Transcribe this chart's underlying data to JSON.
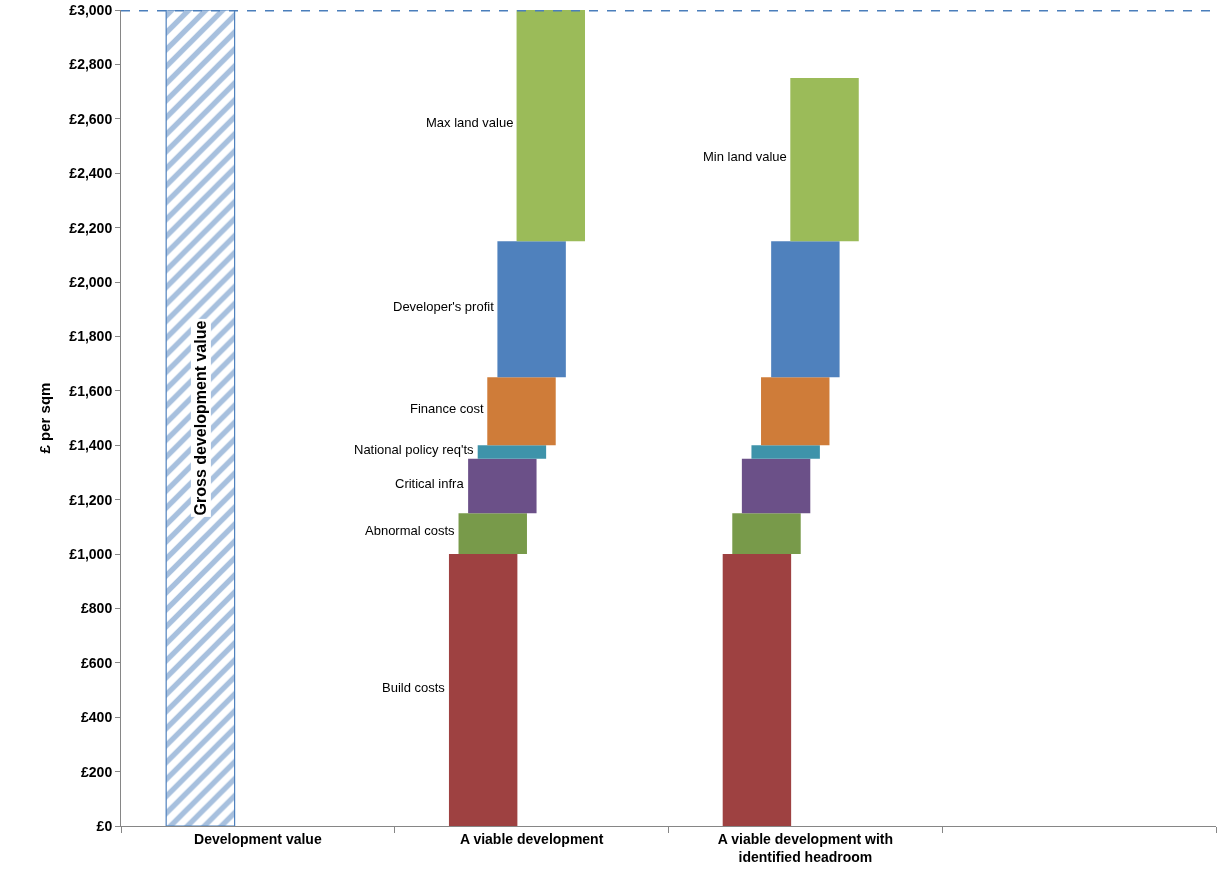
{
  "chart_data": {
    "type": "bar",
    "ylabel": "£ per sqm",
    "categories": [
      "Development value",
      "A viable development",
      "A viable development with\nidentified headroom",
      null
    ],
    "series": [
      {
        "name": "Gross development value",
        "color": "#4f81bd",
        "values": [
          3000,
          null,
          null,
          null
        ],
        "base": [
          0,
          null,
          null,
          null
        ]
      },
      {
        "name": "Build costs",
        "color": "#9e4141",
        "values": [
          null,
          1000,
          1000,
          null
        ],
        "base": [
          null,
          0,
          0,
          null
        ]
      },
      {
        "name": "Abnormal costs",
        "color": "#789a4a",
        "values": [
          null,
          150,
          150,
          null
        ],
        "base": [
          null,
          1000,
          1000,
          null
        ]
      },
      {
        "name": "Critical infra",
        "color": "#6b5088",
        "values": [
          null,
          200,
          200,
          null
        ],
        "base": [
          null,
          1150,
          1150,
          null
        ]
      },
      {
        "name": "National policy req'ts",
        "color": "#3e93aa",
        "values": [
          null,
          50,
          50,
          null
        ],
        "base": [
          null,
          1350,
          1350,
          null
        ]
      },
      {
        "name": "Finance cost",
        "color": "#cf7c39",
        "values": [
          null,
          250,
          250,
          null
        ],
        "base": [
          null,
          1400,
          1400,
          null
        ]
      },
      {
        "name": "Developer's profit",
        "color": "#4f81bd",
        "values": [
          null,
          500,
          500,
          null
        ],
        "base": [
          null,
          1650,
          1650,
          null
        ]
      },
      {
        "name": "Max land value",
        "color": "#9bbb59",
        "values": [
          null,
          850,
          null,
          null
        ],
        "base": [
          null,
          2150,
          null,
          null
        ]
      },
      {
        "name": "Min land value",
        "color": "#9bbb59",
        "values": [
          null,
          null,
          600,
          null
        ],
        "base": [
          null,
          null,
          2150,
          null
        ]
      }
    ],
    "ylim": [
      0,
      3000
    ],
    "yticks": [
      {
        "value": 0,
        "label": "£0"
      },
      {
        "value": 200,
        "label": "£200"
      },
      {
        "value": 400,
        "label": "£400"
      },
      {
        "value": 600,
        "label": "£600"
      },
      {
        "value": 800,
        "label": "£800"
      },
      {
        "value": 1000,
        "label": "£1,000"
      },
      {
        "value": 1200,
        "label": "£1,200"
      },
      {
        "value": 1400,
        "label": "£1,400"
      },
      {
        "value": 1600,
        "label": "£1,600"
      },
      {
        "value": 1800,
        "label": "£1,800"
      },
      {
        "value": 2000,
        "label": "£2,000"
      },
      {
        "value": 2200,
        "label": "£2,200"
      },
      {
        "value": 2400,
        "label": "£2,400"
      },
      {
        "value": 2600,
        "label": "£2,600"
      },
      {
        "value": 2800,
        "label": "£2,800"
      },
      {
        "value": 3000,
        "label": "£3,000"
      }
    ],
    "ref_lines": [
      {
        "axis": "y",
        "value": 3000,
        "color": "#4a7ebb",
        "line_style": "dashed"
      }
    ],
    "legend": false
  }
}
